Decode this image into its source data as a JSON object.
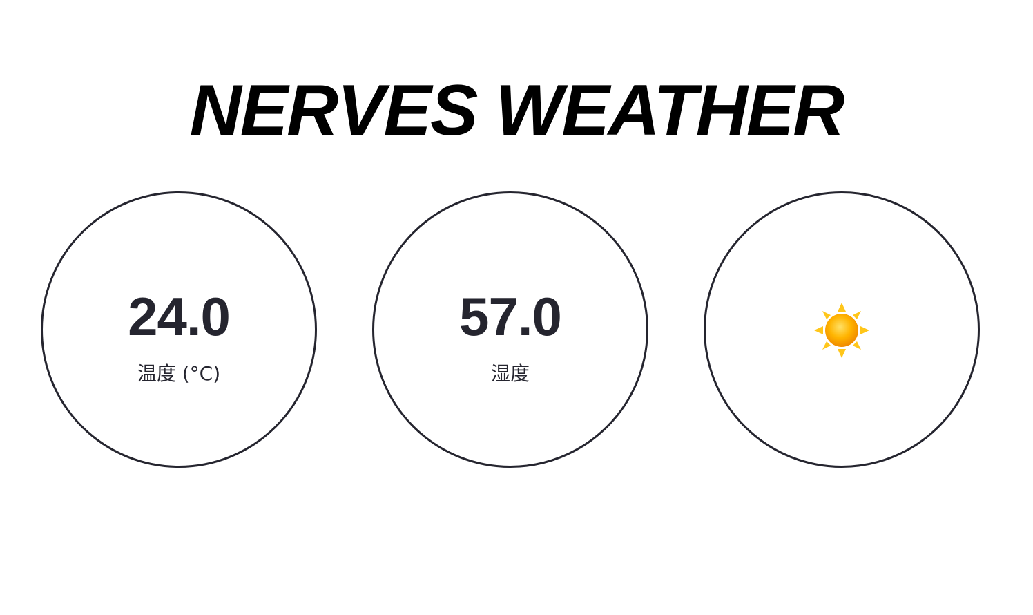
{
  "header": {
    "title": "NERVES WEATHER"
  },
  "cards": {
    "temperature": {
      "value": "24.0",
      "label": "温度 (°C)"
    },
    "humidity": {
      "value": "57.0",
      "label": "湿度"
    },
    "weather": {
      "icon": "sun-icon",
      "condition_colors": {
        "core": "#FFB400",
        "rays": "#FFC61A"
      }
    }
  },
  "colors": {
    "text": "#25252f",
    "border": "#25252f",
    "title": "#000000",
    "background": "#ffffff"
  }
}
